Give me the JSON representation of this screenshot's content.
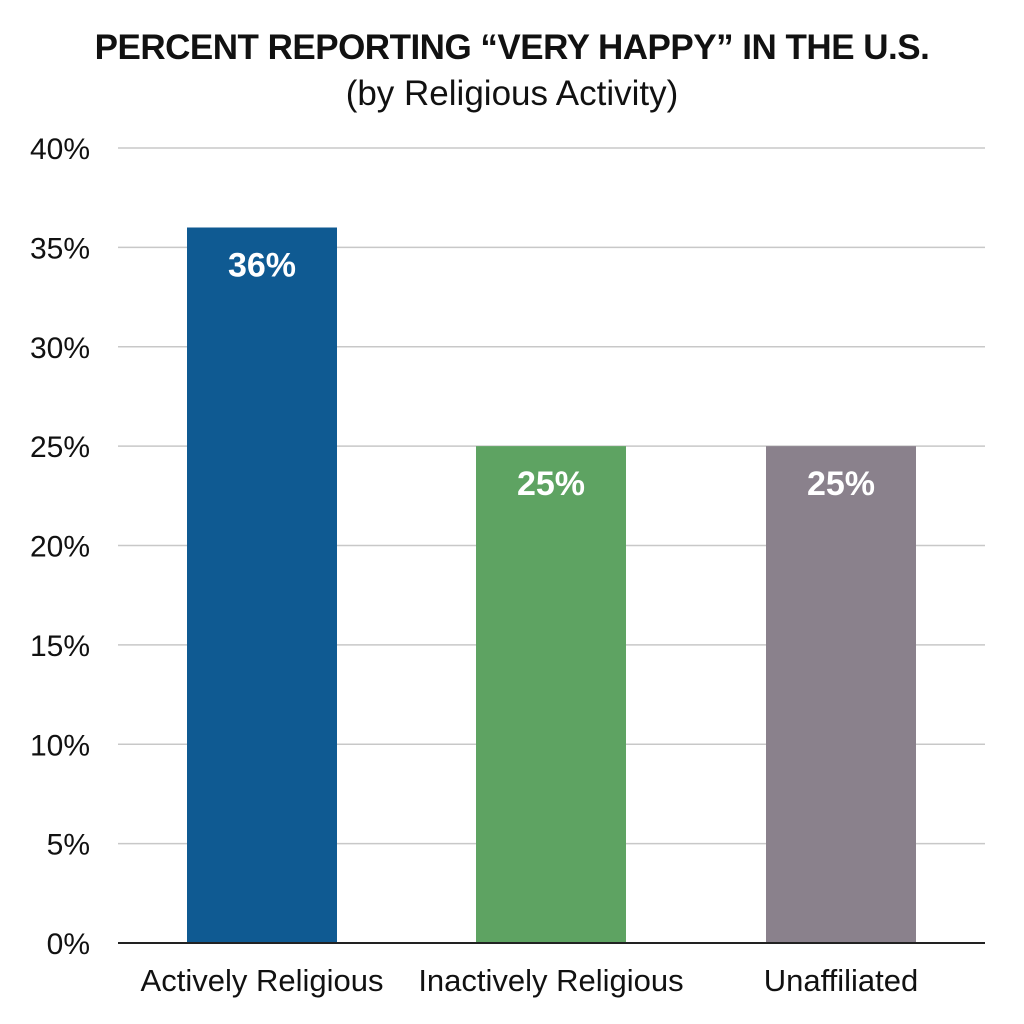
{
  "chart_data": {
    "type": "bar",
    "title": "PERCENT REPORTING “VERY HAPPY” IN THE U.S.",
    "subtitle": "(by Religious Activity)",
    "xlabel": "",
    "ylabel": "",
    "categories": [
      "Actively Religious",
      "Inactively Religious",
      "Unaffiliated"
    ],
    "values": [
      36,
      25,
      25
    ],
    "data_labels": [
      "36%",
      "25%",
      "25%"
    ],
    "colors": [
      "#0f5a92",
      "#5ea362",
      "#8a818c"
    ],
    "ylim": [
      0,
      40
    ],
    "yticks": [
      0,
      5,
      10,
      15,
      20,
      25,
      30,
      35,
      40
    ],
    "ytick_labels": [
      "0%",
      "5%",
      "10%",
      "15%",
      "20%",
      "25%",
      "30%",
      "35%",
      "40%"
    ],
    "grid": true,
    "legend": "none"
  }
}
